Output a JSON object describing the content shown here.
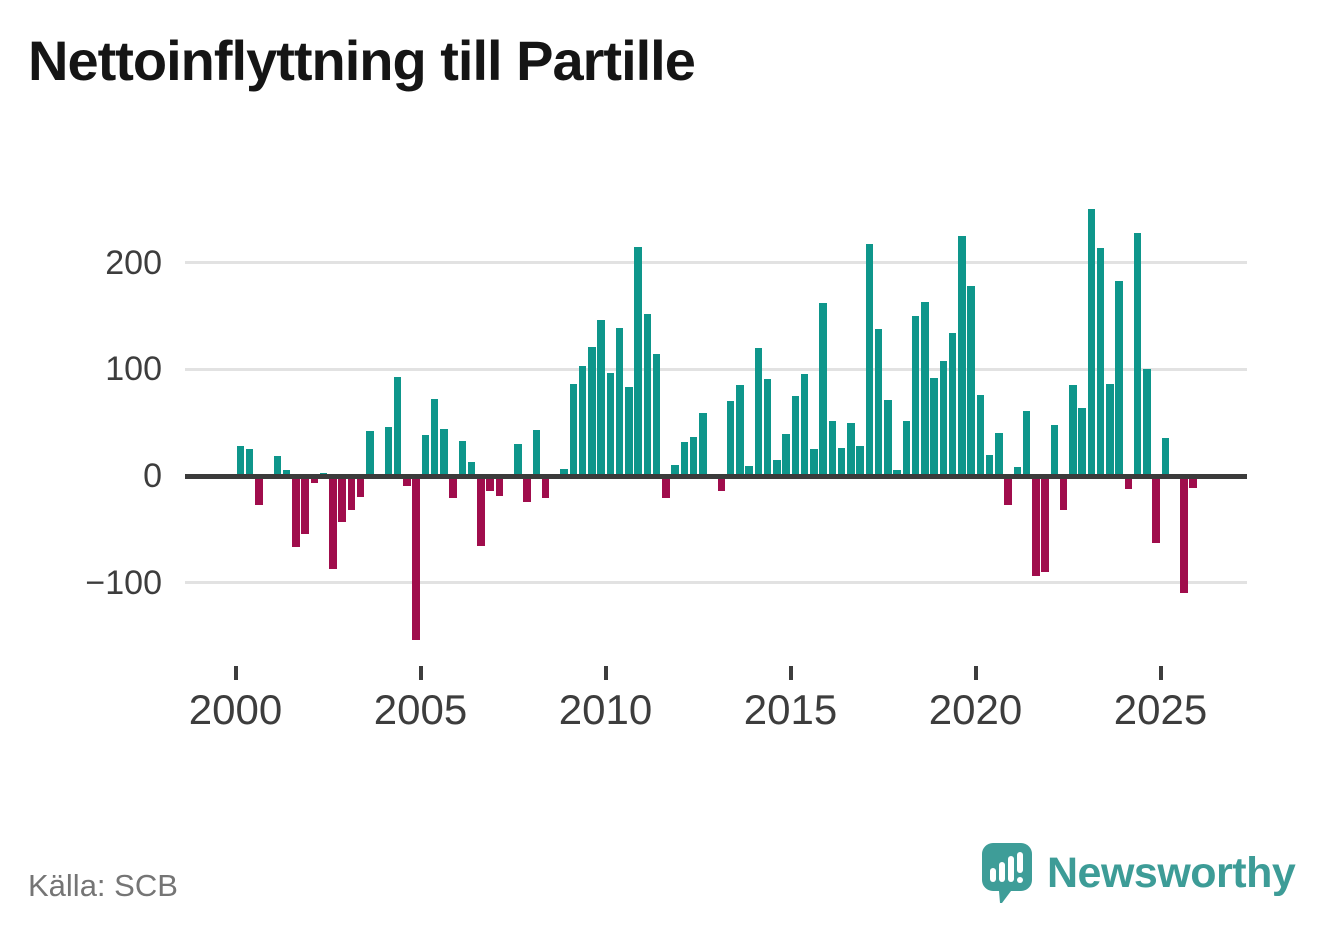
{
  "title": "Nettoinflyttning till Partille",
  "source": "Källa: SCB",
  "brand": {
    "name": "Newsworthy",
    "color": "#3d9c97"
  },
  "chart_data": {
    "type": "bar",
    "title": "Nettoinflyttning till Partille",
    "x_unit": "quarter",
    "start_year": 2000,
    "values": [
      28,
      25,
      -27,
      0,
      19,
      6,
      -67,
      -54,
      -7,
      3,
      -87,
      -43,
      -32,
      -20,
      42,
      0,
      46,
      93,
      -9,
      -154,
      38,
      72,
      44,
      -21,
      33,
      13,
      -66,
      -14,
      -19,
      0,
      30,
      -24,
      43,
      -21,
      0,
      7,
      86,
      103,
      121,
      146,
      97,
      139,
      83,
      215,
      152,
      114,
      -21,
      10,
      32,
      37,
      59,
      0,
      -14,
      70,
      85,
      9,
      120,
      91,
      15,
      39,
      75,
      96,
      25,
      162,
      52,
      26,
      50,
      28,
      218,
      138,
      71,
      6,
      52,
      150,
      163,
      92,
      108,
      134,
      225,
      178,
      76,
      20,
      40,
      -27,
      8,
      61,
      -94,
      -90,
      48,
      -32,
      85,
      64,
      250,
      214,
      86,
      183,
      -12,
      228,
      100,
      -63,
      36,
      0,
      -110,
      -11
    ],
    "x_tick_years": [
      2000,
      2005,
      2010,
      2015,
      2020,
      2025
    ],
    "y_ticks": [
      200,
      100,
      0,
      -100
    ],
    "y_tick_labels": [
      "200",
      "100",
      "0",
      "−100"
    ],
    "ylim": [
      -160,
      260
    ],
    "positive_color": "#0e968b",
    "negative_color": "#a00d4c",
    "grid": true,
    "legend": false
  }
}
